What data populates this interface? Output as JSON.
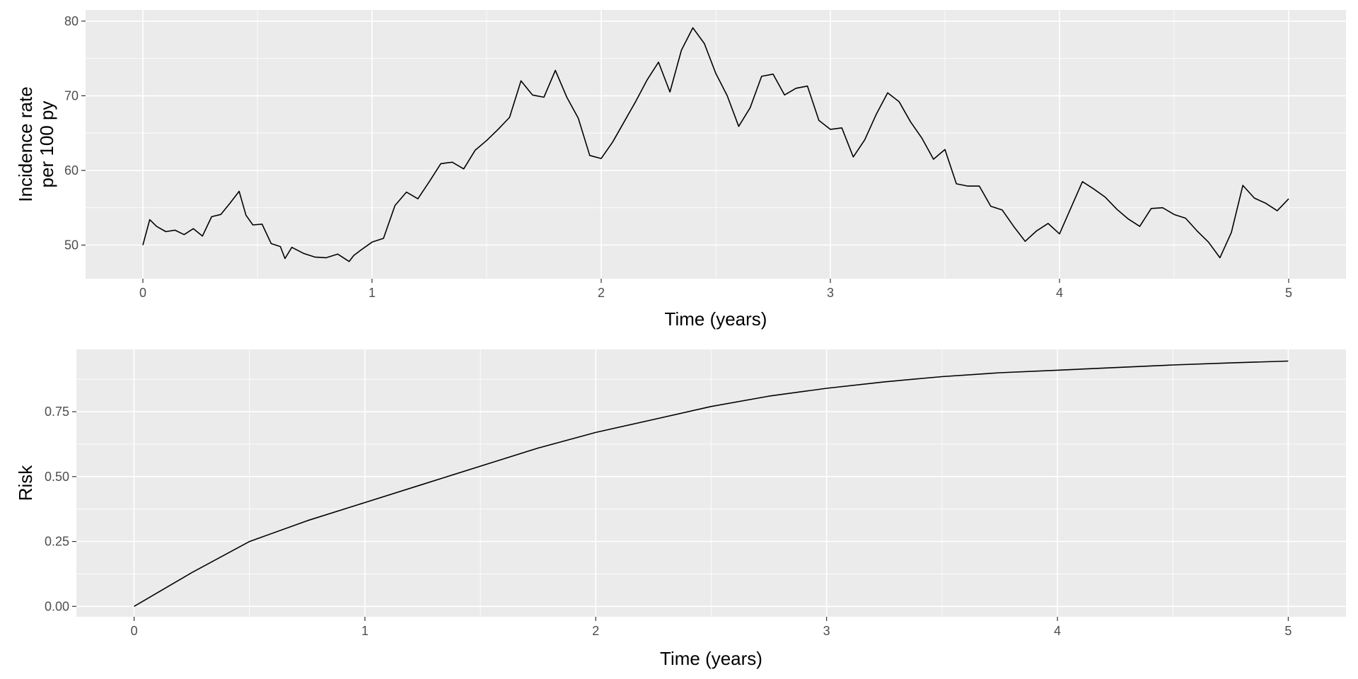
{
  "chart_data": [
    {
      "type": "line",
      "xlabel": "Time (years)",
      "ylabel_lines": [
        "Incidence rate",
        "per 100 py"
      ],
      "xlim": [
        -0.25,
        5.25
      ],
      "ylim": [
        45.5,
        81.5
      ],
      "x_ticks": [
        0,
        1,
        2,
        3,
        4,
        5
      ],
      "y_ticks": [
        50,
        60,
        70,
        80
      ],
      "x_tick_labels": [
        "0",
        "1",
        "2",
        "3",
        "4",
        "5"
      ],
      "y_tick_labels": [
        "50",
        "60",
        "70",
        "80"
      ],
      "grid": true,
      "line_color": "#000000",
      "series": [
        {
          "x": [
            0,
            0.03,
            0.06,
            0.1,
            0.14,
            0.18,
            0.22,
            0.26,
            0.3,
            0.34,
            0.38,
            0.42,
            0.45,
            0.48,
            0.52,
            0.56,
            0.6,
            0.62,
            0.65,
            0.7,
            0.75,
            0.8,
            0.85,
            0.9,
            0.92,
            0.95,
            1.0,
            1.05,
            1.1,
            1.15,
            1.2,
            1.25,
            1.3,
            1.35,
            1.4,
            1.45,
            1.5,
            1.55,
            1.6,
            1.65,
            1.7,
            1.75,
            1.8,
            1.85,
            1.9,
            1.95,
            2.0,
            2.05,
            2.1,
            2.15,
            2.2,
            2.25,
            2.3,
            2.35,
            2.4,
            2.45,
            2.5,
            2.55,
            2.6,
            2.65,
            2.7,
            2.75,
            2.8,
            2.85,
            2.9,
            2.95,
            3.0,
            3.05,
            3.1,
            3.15,
            3.2,
            3.25,
            3.3,
            3.35,
            3.4,
            3.45,
            3.5,
            3.55,
            3.6,
            3.65,
            3.7,
            3.75,
            3.8,
            3.85,
            3.9,
            3.95,
            4.0,
            4.05,
            4.1,
            4.15,
            4.2,
            4.25,
            4.3,
            4.35,
            4.4,
            4.45,
            4.5,
            4.55,
            4.6,
            4.65,
            4.7,
            4.75,
            4.8,
            4.85,
            4.9,
            4.95,
            5.0
          ],
          "y": [
            50.0,
            53.4,
            52.5,
            51.8,
            52.0,
            51.4,
            52.2,
            51.2,
            53.8,
            54.1,
            55.6,
            57.2,
            54.0,
            52.7,
            52.8,
            50.2,
            49.8,
            48.2,
            49.7,
            48.9,
            48.4,
            48.3,
            48.8,
            47.8,
            48.6,
            49.3,
            50.4,
            50.9,
            55.3,
            57.1,
            56.2,
            58.5,
            60.9,
            61.1,
            60.2,
            62.7,
            64.0,
            65.5,
            67.1,
            72.0,
            70.1,
            69.8,
            73.4,
            69.8,
            67.0,
            62.0,
            61.6,
            63.8,
            66.5,
            69.2,
            72.1,
            74.5,
            70.5,
            76.1,
            79.1,
            77.0,
            73.0,
            70.0,
            65.9,
            68.4,
            72.6,
            72.9,
            70.1,
            71.0,
            71.3,
            66.7,
            65.5,
            65.7,
            61.8,
            64.1,
            67.5,
            70.4,
            69.2,
            66.5,
            64.3,
            61.5,
            62.8,
            58.2,
            57.9,
            57.9,
            55.2,
            54.7,
            52.5,
            50.5,
            51.9,
            52.9,
            51.5,
            55.0,
            58.5,
            57.5,
            56.4,
            54.8,
            53.5,
            52.5,
            54.9,
            55.0,
            54.1,
            53.6,
            51.9,
            50.4,
            48.3,
            51.7,
            58.0,
            56.3,
            55.6,
            54.6,
            56.2
          ]
        }
      ]
    },
    {
      "type": "line",
      "xlabel": "Time (years)",
      "ylabel": "Risk",
      "xlim": [
        -0.25,
        5.25
      ],
      "ylim": [
        -0.04,
        0.99
      ],
      "x_ticks": [
        0,
        1,
        2,
        3,
        4,
        5
      ],
      "y_ticks": [
        0.0,
        0.25,
        0.5,
        0.75
      ],
      "x_tick_labels": [
        "0",
        "1",
        "2",
        "3",
        "4",
        "5"
      ],
      "y_tick_labels": [
        "0.00",
        "0.25",
        "0.50",
        "0.75"
      ],
      "grid": true,
      "line_color": "#000000",
      "series": [
        {
          "x": [
            0,
            0.25,
            0.5,
            0.75,
            1.0,
            1.25,
            1.5,
            1.75,
            2.0,
            2.25,
            2.5,
            2.75,
            3.0,
            3.25,
            3.5,
            3.75,
            4.0,
            4.25,
            4.5,
            4.75,
            5.0
          ],
          "y": [
            0.0,
            0.13,
            0.25,
            0.33,
            0.4,
            0.47,
            0.54,
            0.61,
            0.67,
            0.72,
            0.77,
            0.81,
            0.84,
            0.865,
            0.885,
            0.9,
            0.91,
            0.92,
            0.93,
            0.938,
            0.945
          ]
        }
      ]
    }
  ]
}
